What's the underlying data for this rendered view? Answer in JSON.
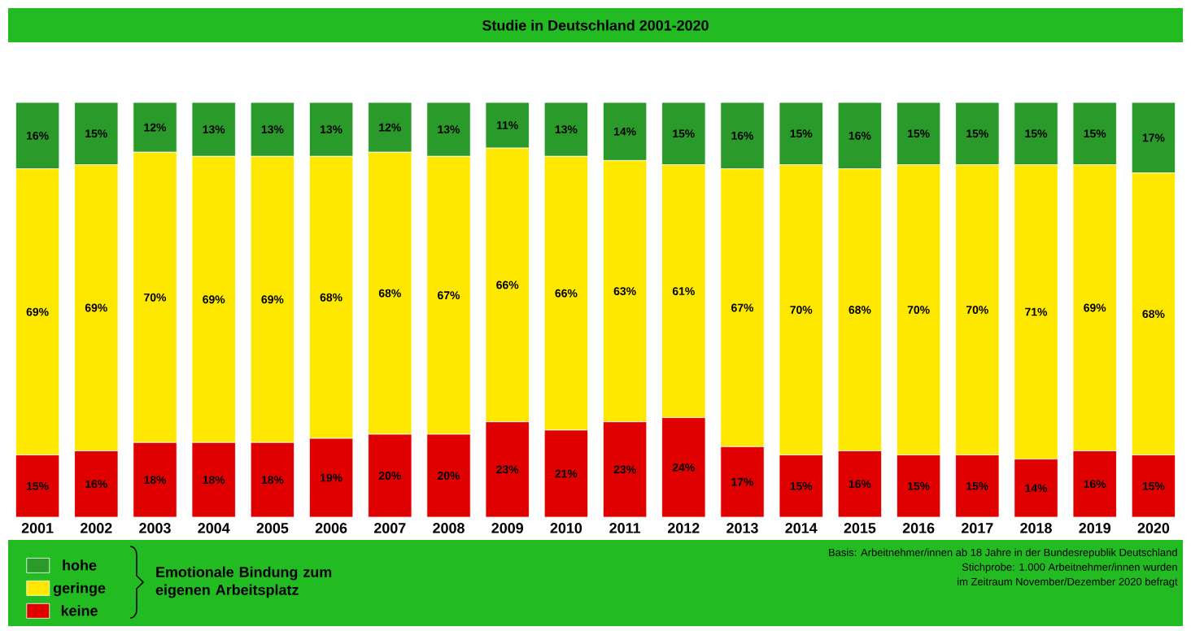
{
  "chart_data": {
    "type": "bar",
    "stacked": true,
    "title": "Studie in Deutschland 2001-2020",
    "categories": [
      "2001",
      "2002",
      "2003",
      "2004",
      "2005",
      "2006",
      "2007",
      "2008",
      "2009",
      "2010",
      "2011",
      "2012",
      "2013",
      "2014",
      "2015",
      "2016",
      "2017",
      "2018",
      "2019",
      "2020"
    ],
    "series": [
      {
        "name": "keine",
        "color": "#e00000",
        "values": [
          15,
          16,
          18,
          18,
          18,
          19,
          20,
          20,
          23,
          21,
          23,
          24,
          17,
          15,
          16,
          15,
          15,
          14,
          16,
          15
        ],
        "value_labels": [
          "15%",
          "16%",
          "18%",
          "18%",
          "18%",
          "19%",
          "20%",
          "20%",
          "23%",
          "21%",
          "23%",
          "24%",
          "17%",
          "15%",
          "16%",
          "15%",
          "15%",
          "14%",
          "16%",
          "15%"
        ]
      },
      {
        "name": "geringe",
        "color": "#ffe800",
        "values": [
          69,
          69,
          70,
          69,
          69,
          68,
          68,
          67,
          66,
          66,
          63,
          61,
          67,
          70,
          68,
          70,
          70,
          71,
          69,
          68
        ],
        "value_labels": [
          "69%",
          "69%",
          "70%",
          "69%",
          "69%",
          "68%",
          "68%",
          "67%",
          "66%",
          "66%",
          "63%",
          "61%",
          "67%",
          "70%",
          "68%",
          "70%",
          "70%",
          "71%",
          "69%",
          "68%"
        ]
      },
      {
        "name": "hohe",
        "color": "#2a9a2a",
        "values": [
          16,
          15,
          12,
          13,
          13,
          13,
          12,
          13,
          11,
          13,
          14,
          15,
          16,
          15,
          16,
          15,
          15,
          15,
          15,
          17
        ],
        "value_labels": [
          "16%",
          "15%",
          "12%",
          "13%",
          "13%",
          "13%",
          "12%",
          "13%",
          "11%",
          "13%",
          "14%",
          "15%",
          "16%",
          "15%",
          "16%",
          "15%",
          "15%",
          "15%",
          "15%",
          "17%"
        ]
      }
    ],
    "ylim": [
      0,
      100
    ],
    "tick_labels": "x",
    "legend": "bottom left",
    "legend_title": "Emotionale Bindung zum eigenen Arbeitsplatz",
    "annotations": [
      "Basis: Arbeitnehmer/innen ab 18 Jahre in der Bundesrepublik Deutschland",
      "Stichprobe: 1.000 Arbeitnehmer/innen wurden",
      "im Zeitraum November/Dezember 2020 befragt"
    ]
  }
}
